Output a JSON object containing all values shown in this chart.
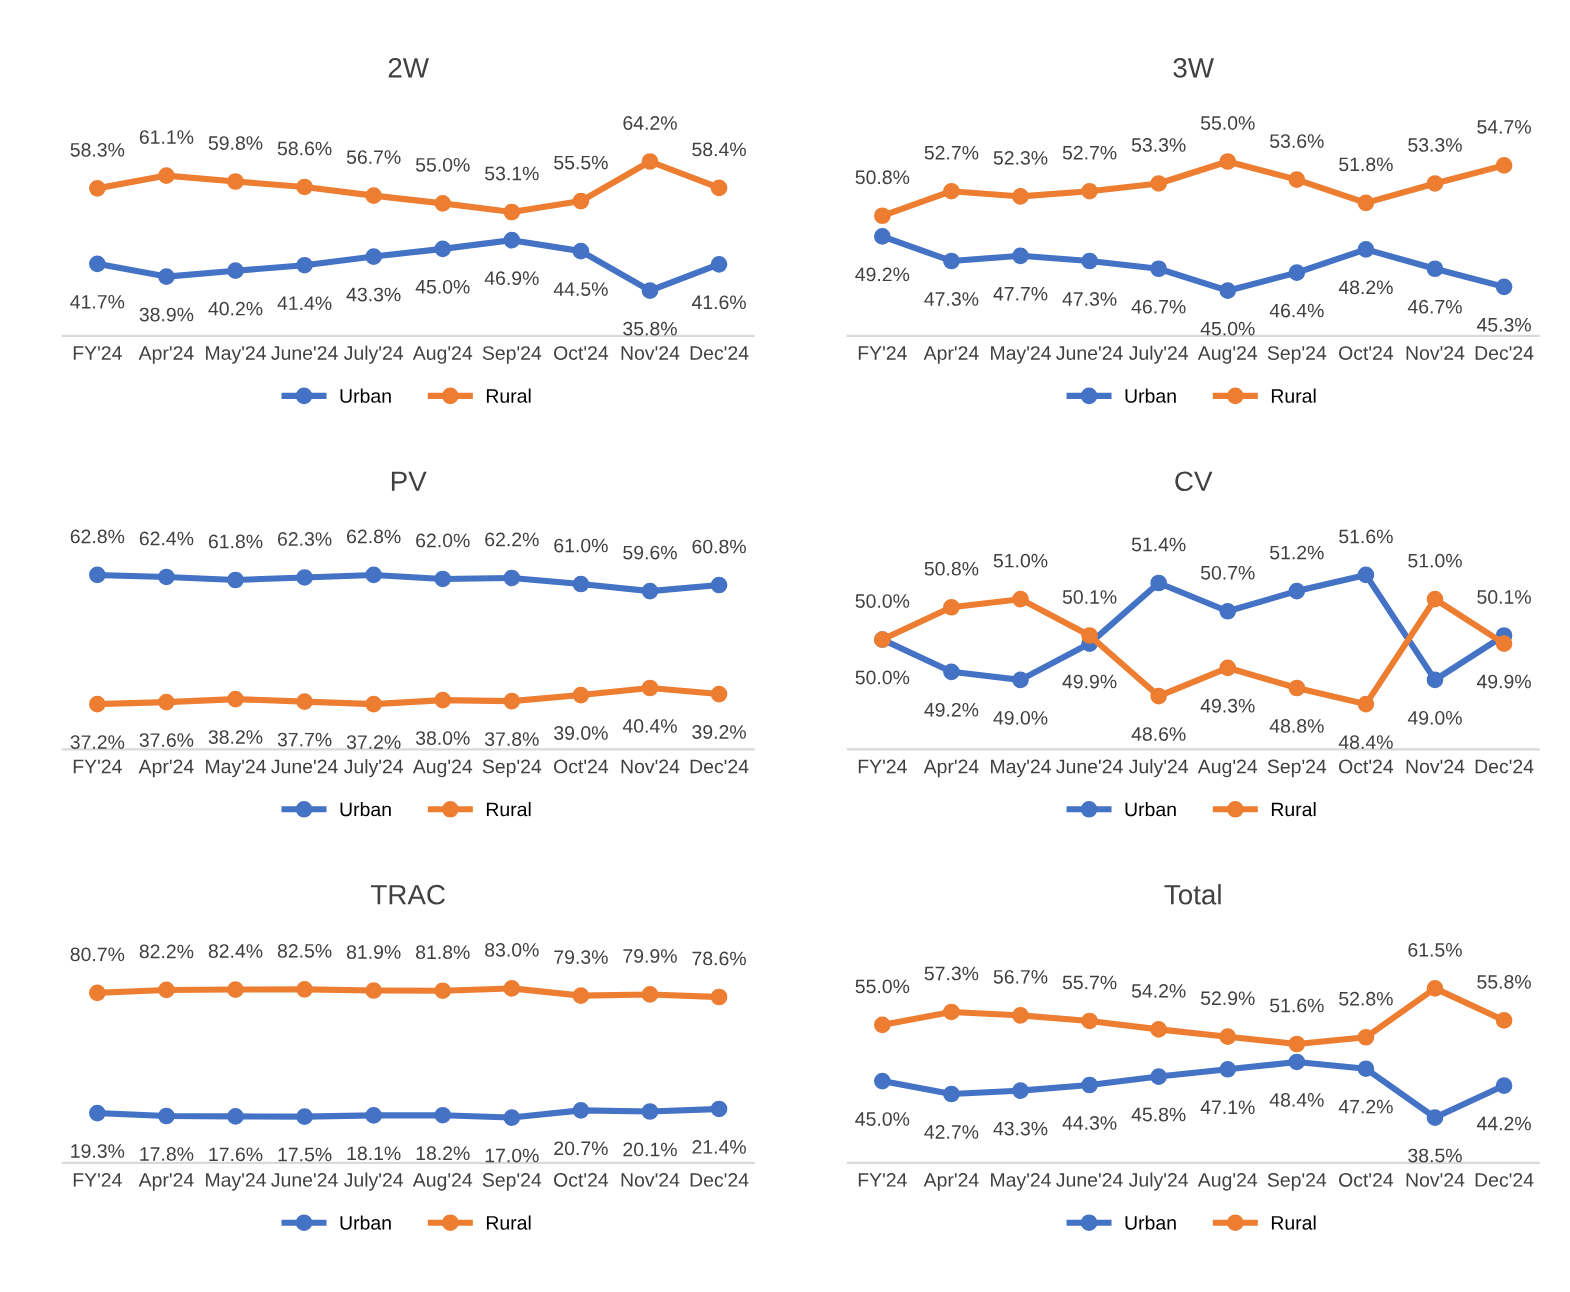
{
  "chart_data": [
    {
      "type": "line",
      "title": "2W",
      "categories": [
        "FY'24",
        "Apr'24",
        "May'24",
        "June'24",
        "July'24",
        "Aug'24",
        "Sep'24",
        "Oct'24",
        "Nov'24",
        "Dec'24"
      ],
      "marker": "circle",
      "legend": "bottom",
      "grid": false,
      "tick_labels": "x",
      "series": [
        {
          "name": "Urban",
          "color": "#4472c4",
          "values": [
            41.7,
            38.9,
            40.2,
            41.4,
            43.3,
            45.0,
            46.9,
            44.5,
            35.8,
            41.6
          ],
          "value_labels": [
            "41.7%",
            "38.9%",
            "40.2%",
            "41.4%",
            "43.3%",
            "45.0%",
            "46.9%",
            "44.5%",
            "35.8%",
            "41.6%"
          ]
        },
        {
          "name": "Rural",
          "color": "#ed7d31",
          "values": [
            58.3,
            61.1,
            59.8,
            58.6,
            56.7,
            55.0,
            53.1,
            55.5,
            64.2,
            58.4
          ],
          "value_labels": [
            "58.3%",
            "61.1%",
            "59.8%",
            "58.6%",
            "56.7%",
            "55.0%",
            "53.1%",
            "55.5%",
            "64.2%",
            "58.4%"
          ]
        }
      ]
    },
    {
      "type": "line",
      "title": "3W",
      "categories": [
        "FY'24",
        "Apr'24",
        "May'24",
        "June'24",
        "July'24",
        "Aug'24",
        "Sep'24",
        "Oct'24",
        "Nov'24",
        "Dec'24"
      ],
      "marker": "circle",
      "legend": "bottom",
      "grid": false,
      "tick_labels": "x",
      "series": [
        {
          "name": "Urban",
          "color": "#4472c4",
          "values": [
            49.2,
            47.3,
            47.7,
            47.3,
            46.7,
            45.0,
            46.4,
            48.2,
            46.7,
            45.3
          ],
          "value_labels": [
            "49.2%",
            "47.3%",
            "47.7%",
            "47.3%",
            "46.7%",
            "45.0%",
            "46.4%",
            "48.2%",
            "46.7%",
            "45.3%"
          ]
        },
        {
          "name": "Rural",
          "color": "#ed7d31",
          "values": [
            50.8,
            52.7,
            52.3,
            52.7,
            53.3,
            55.0,
            53.6,
            51.8,
            53.3,
            54.7
          ],
          "value_labels": [
            "50.8%",
            "52.7%",
            "52.3%",
            "52.7%",
            "53.3%",
            "55.0%",
            "53.6%",
            "51.8%",
            "53.3%",
            "54.7%"
          ]
        }
      ]
    },
    {
      "type": "line",
      "title": "PV",
      "categories": [
        "FY'24",
        "Apr'24",
        "May'24",
        "June'24",
        "July'24",
        "Aug'24",
        "Sep'24",
        "Oct'24",
        "Nov'24",
        "Dec'24"
      ],
      "marker": "circle",
      "legend": "bottom",
      "grid": false,
      "tick_labels": "x",
      "series": [
        {
          "name": "Urban",
          "color": "#4472c4",
          "values": [
            62.8,
            62.4,
            61.8,
            62.3,
            62.8,
            62.0,
            62.2,
            61.0,
            59.6,
            60.8
          ],
          "value_labels": [
            "62.8%",
            "62.4%",
            "61.8%",
            "62.3%",
            "62.8%",
            "62.0%",
            "62.2%",
            "61.0%",
            "59.6%",
            "60.8%"
          ]
        },
        {
          "name": "Rural",
          "color": "#ed7d31",
          "values": [
            37.2,
            37.6,
            38.2,
            37.7,
            37.2,
            38.0,
            37.8,
            39.0,
            40.4,
            39.2
          ],
          "value_labels": [
            "37.2%",
            "37.6%",
            "38.2%",
            "37.7%",
            "37.2%",
            "38.0%",
            "37.8%",
            "39.0%",
            "40.4%",
            "39.2%"
          ]
        }
      ]
    },
    {
      "type": "line",
      "title": "CV",
      "categories": [
        "FY'24",
        "Apr'24",
        "May'24",
        "June'24",
        "July'24",
        "Aug'24",
        "Sep'24",
        "Oct'24",
        "Nov'24",
        "Dec'24"
      ],
      "marker": "circle",
      "legend": "bottom",
      "grid": false,
      "tick_labels": "x",
      "series": [
        {
          "name": "Urban",
          "color": "#4472c4",
          "values": [
            50.0,
            49.2,
            49.0,
            49.9,
            51.4,
            50.7,
            51.2,
            51.6,
            49.0,
            50.1
          ],
          "value_labels": [
            "50.0%",
            "49.2%",
            "49.0%",
            "49.9%",
            "51.4%",
            "50.7%",
            "51.2%",
            "51.6%",
            "49.0%",
            "50.1%"
          ]
        },
        {
          "name": "Rural",
          "color": "#ed7d31",
          "values": [
            50.0,
            50.8,
            51.0,
            50.1,
            48.6,
            49.3,
            48.8,
            48.4,
            51.0,
            49.9
          ],
          "value_labels": [
            "50.0%",
            "50.8%",
            "51.0%",
            "50.1%",
            "48.6%",
            "49.3%",
            "48.8%",
            "48.4%",
            "51.0%",
            "49.9%"
          ]
        }
      ]
    },
    {
      "type": "line",
      "title": "TRAC",
      "categories": [
        "FY'24",
        "Apr'24",
        "May'24",
        "June'24",
        "July'24",
        "Aug'24",
        "Sep'24",
        "Oct'24",
        "Nov'24",
        "Dec'24"
      ],
      "marker": "circle",
      "legend": "bottom",
      "grid": false,
      "tick_labels": "x",
      "series": [
        {
          "name": "Urban",
          "color": "#4472c4",
          "values": [
            19.3,
            17.8,
            17.6,
            17.5,
            18.1,
            18.2,
            17.0,
            20.7,
            20.1,
            21.4
          ],
          "value_labels": [
            "19.3%",
            "17.8%",
            "17.6%",
            "17.5%",
            "18.1%",
            "18.2%",
            "17.0%",
            "20.7%",
            "20.1%",
            "21.4%"
          ]
        },
        {
          "name": "Rural",
          "color": "#ed7d31",
          "values": [
            80.7,
            82.2,
            82.4,
            82.5,
            81.9,
            81.8,
            83.0,
            79.3,
            79.9,
            78.6
          ],
          "value_labels": [
            "80.7%",
            "82.2%",
            "82.4%",
            "82.5%",
            "81.9%",
            "81.8%",
            "83.0%",
            "79.3%",
            "79.9%",
            "78.6%"
          ]
        }
      ]
    },
    {
      "type": "line",
      "title": "Total",
      "categories": [
        "FY'24",
        "Apr'24",
        "May'24",
        "June'24",
        "July'24",
        "Aug'24",
        "Sep'24",
        "Oct'24",
        "Nov'24",
        "Dec'24"
      ],
      "marker": "circle",
      "legend": "bottom",
      "grid": false,
      "tick_labels": "x",
      "series": [
        {
          "name": "Urban",
          "color": "#4472c4",
          "values": [
            45.0,
            42.7,
            43.3,
            44.3,
            45.8,
            47.1,
            48.4,
            47.2,
            38.5,
            44.2
          ],
          "value_labels": [
            "45.0%",
            "42.7%",
            "43.3%",
            "44.3%",
            "45.8%",
            "47.1%",
            "48.4%",
            "47.2%",
            "38.5%",
            "44.2%"
          ]
        },
        {
          "name": "Rural",
          "color": "#ed7d31",
          "values": [
            55.0,
            57.3,
            56.7,
            55.7,
            54.2,
            52.9,
            51.6,
            52.8,
            61.5,
            55.8
          ],
          "value_labels": [
            "55.0%",
            "57.3%",
            "56.7%",
            "55.7%",
            "54.2%",
            "52.9%",
            "51.6%",
            "52.8%",
            "61.5%",
            "55.8%"
          ]
        }
      ]
    }
  ]
}
